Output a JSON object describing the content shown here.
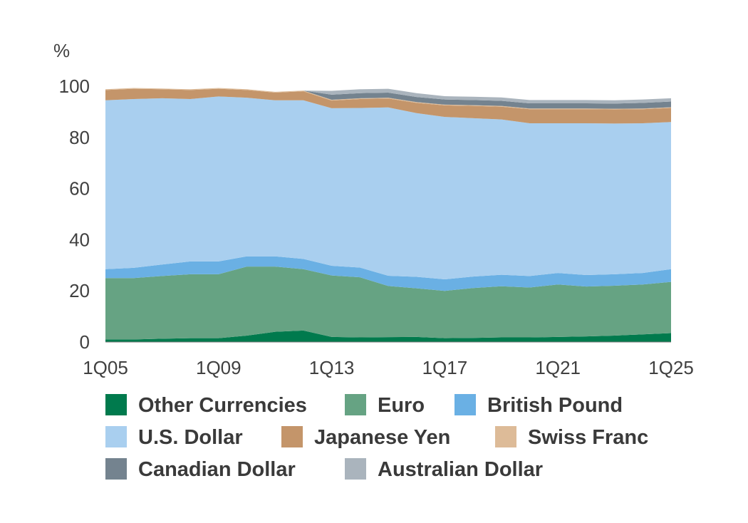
{
  "chart_data": {
    "type": "area",
    "stacked": true,
    "ylabel": "%",
    "ylim": [
      0,
      100
    ],
    "yticks": [
      0,
      20,
      40,
      60,
      80,
      100
    ],
    "xtick_labels": [
      "1Q05",
      "1Q09",
      "1Q13",
      "1Q17",
      "1Q21",
      "1Q25"
    ],
    "grid": false,
    "legend_position": "bottom",
    "x": [
      "1Q05",
      "1Q06",
      "1Q07",
      "1Q08",
      "1Q09",
      "1Q10",
      "1Q11",
      "1Q12",
      "1Q13",
      "1Q14",
      "1Q15",
      "1Q16",
      "1Q17",
      "1Q18",
      "1Q19",
      "1Q20",
      "1Q21",
      "1Q22",
      "1Q23",
      "1Q24",
      "1Q25"
    ],
    "series": [
      {
        "name": "Other Currencies",
        "color": "#007a4d",
        "values": [
          1.0,
          1.0,
          1.3,
          1.5,
          1.5,
          2.5,
          4.0,
          4.5,
          2.0,
          1.8,
          1.9,
          2.0,
          1.5,
          1.6,
          1.8,
          1.8,
          2.0,
          2.2,
          2.5,
          3.0,
          3.5
        ]
      },
      {
        "name": "Euro",
        "color": "#66a383",
        "values": [
          24.0,
          24.0,
          24.5,
          25.0,
          25.0,
          27.0,
          25.5,
          24.0,
          24.0,
          23.5,
          20.0,
          19.0,
          18.5,
          19.5,
          20.0,
          19.5,
          20.5,
          19.5,
          19.5,
          19.5,
          20.0
        ]
      },
      {
        "name": "British Pound",
        "color": "#6ab0e4",
        "values": [
          3.5,
          4.0,
          4.5,
          5.0,
          5.0,
          4.0,
          4.0,
          4.0,
          3.8,
          3.8,
          4.0,
          4.5,
          4.5,
          4.5,
          4.5,
          4.5,
          4.5,
          4.5,
          4.5,
          4.5,
          5.0
        ]
      },
      {
        "name": "U.S. Dollar",
        "color": "#a9cfef",
        "values": [
          66.0,
          66.0,
          65.0,
          63.5,
          64.5,
          62.0,
          61.0,
          62.0,
          61.6,
          62.4,
          65.8,
          64.0,
          63.5,
          61.9,
          60.7,
          59.7,
          58.5,
          59.3,
          58.9,
          58.5,
          57.5
        ]
      },
      {
        "name": "Japanese Yen",
        "color": "#c4956a",
        "values": [
          4.0,
          4.0,
          3.5,
          3.5,
          3.0,
          3.0,
          3.0,
          3.5,
          3.0,
          3.5,
          3.5,
          4.0,
          4.5,
          4.8,
          5.0,
          5.5,
          5.5,
          5.5,
          5.5,
          5.5,
          5.5
        ]
      },
      {
        "name": "Swiss Franc",
        "color": "#ddbb98",
        "values": [
          0.3,
          0.3,
          0.3,
          0.3,
          0.3,
          0.3,
          0.3,
          0.3,
          0.3,
          0.3,
          0.3,
          0.3,
          0.3,
          0.3,
          0.3,
          0.3,
          0.3,
          0.3,
          0.3,
          0.3,
          0.3
        ]
      },
      {
        "name": "Canadian Dollar",
        "color": "#74838f",
        "values": [
          0.0,
          0.0,
          0.0,
          0.0,
          0.0,
          0.0,
          0.0,
          0.0,
          2.0,
          2.0,
          2.0,
          2.0,
          2.0,
          2.0,
          2.0,
          2.0,
          2.0,
          2.0,
          2.0,
          2.2,
          2.2
        ]
      },
      {
        "name": "Australian Dollar",
        "color": "#aab4bd",
        "values": [
          0.0,
          0.0,
          0.0,
          0.0,
          0.0,
          0.0,
          0.0,
          0.0,
          1.5,
          1.5,
          1.5,
          1.5,
          1.3,
          1.3,
          1.3,
          1.3,
          1.3,
          1.3,
          1.3,
          1.3,
          1.3
        ]
      }
    ]
  }
}
